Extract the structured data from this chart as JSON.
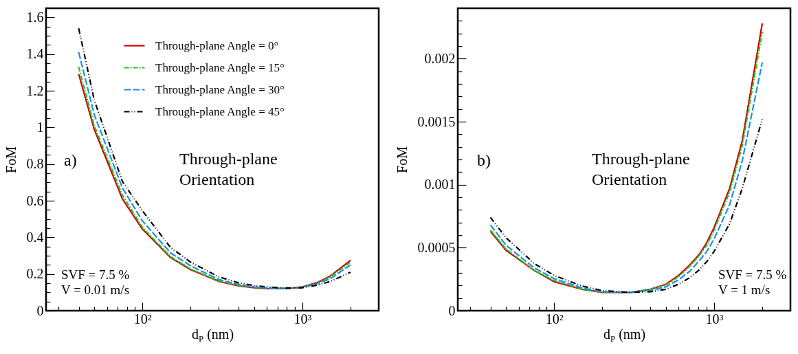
{
  "chart_data": [
    {
      "type": "line",
      "xlabel": "d$_{P}$ (nm)",
      "ylabel": "FoM",
      "log": "x",
      "grid": false,
      "legend": "top",
      "x": [
        40,
        50,
        75,
        100,
        150,
        200,
        300,
        400,
        500,
        600,
        700,
        800,
        900,
        1000,
        1250,
        1500,
        2000
      ],
      "xlim": [
        25,
        3000
      ],
      "xticks": [
        {
          "value": 30,
          "label": null
        },
        {
          "value": 40,
          "label": null
        },
        {
          "value": 50,
          "label": null
        },
        {
          "value": 60,
          "label": null
        },
        {
          "value": 70,
          "label": null
        },
        {
          "value": 80,
          "label": null
        },
        {
          "value": 90,
          "label": null
        },
        {
          "value": 100,
          "label": "10²"
        },
        {
          "value": 200,
          "label": null
        },
        {
          "value": 300,
          "label": null
        },
        {
          "value": 400,
          "label": null
        },
        {
          "value": 500,
          "label": null
        },
        {
          "value": 600,
          "label": null
        },
        {
          "value": 700,
          "label": null
        },
        {
          "value": 800,
          "label": null
        },
        {
          "value": 900,
          "label": null
        },
        {
          "value": 1000,
          "label": "10³"
        },
        {
          "value": 2000,
          "label": null
        }
      ],
      "ylim": [
        0,
        1.65
      ],
      "yticks": [
        0,
        {
          "value": 0.05,
          "label": null
        },
        {
          "value": 0.1,
          "label": null
        },
        {
          "value": 0.15,
          "label": null
        },
        0.2,
        {
          "value": 0.25,
          "label": null
        },
        {
          "value": 0.3,
          "label": null
        },
        {
          "value": 0.35,
          "label": null
        },
        0.4,
        {
          "value": 0.45,
          "label": null
        },
        {
          "value": 0.5,
          "label": null
        },
        {
          "value": 0.55,
          "label": null
        },
        0.6,
        {
          "value": 0.65,
          "label": null
        },
        {
          "value": 0.7,
          "label": null
        },
        {
          "value": 0.75,
          "label": null
        },
        0.8,
        {
          "value": 0.85,
          "label": null
        },
        {
          "value": 0.9,
          "label": null
        },
        {
          "value": 0.95,
          "label": null
        },
        1,
        {
          "value": 1.05,
          "label": null
        },
        {
          "value": 1.1,
          "label": null
        },
        {
          "value": 1.15,
          "label": null
        },
        1.2,
        {
          "value": 1.25,
          "label": null
        },
        {
          "value": 1.3,
          "label": null
        },
        {
          "value": 1.35,
          "label": null
        },
        1.4,
        {
          "value": 1.45,
          "label": null
        },
        {
          "value": 1.5,
          "label": null
        },
        {
          "value": 1.55,
          "label": null
        },
        1.6
      ],
      "annotations": [
        "a)",
        "Through-plane Orientation",
        "SVF = 7.5 %",
        "V = 0.01 m/s"
      ],
      "series": [
        {
          "name": "Through-plane Angle = 0°",
          "color": "#d40000",
          "line_style": "solid",
          "values": [
            1.29,
            0.99,
            0.61,
            0.445,
            0.29,
            0.224,
            0.16,
            0.135,
            0.125,
            0.12,
            0.12,
            0.12,
            0.125,
            0.13,
            0.155,
            0.19,
            0.275
          ]
        },
        {
          "name": "Through-plane Angle = 15°",
          "color": "#1ec81e",
          "line_style": "dashed",
          "values": [
            1.33,
            1.01,
            0.63,
            0.455,
            0.295,
            0.228,
            0.162,
            0.138,
            0.127,
            0.122,
            0.121,
            0.121,
            0.125,
            0.13,
            0.152,
            0.185,
            0.265
          ]
        },
        {
          "name": "Through-plane Angle = 30°",
          "color": "#1e8cf0",
          "line_style": "dashed",
          "values": [
            1.41,
            1.07,
            0.67,
            0.49,
            0.315,
            0.245,
            0.17,
            0.143,
            0.13,
            0.124,
            0.122,
            0.122,
            0.124,
            0.128,
            0.148,
            0.175,
            0.25
          ]
        },
        {
          "name": "Through-plane Angle = 45°",
          "color": "#000000",
          "line_style": "dashed",
          "values": [
            1.54,
            1.15,
            0.705,
            0.545,
            0.345,
            0.265,
            0.185,
            0.152,
            0.137,
            0.13,
            0.126,
            0.124,
            0.124,
            0.125,
            0.14,
            0.16,
            0.21
          ]
        }
      ]
    },
    {
      "type": "line",
      "xlabel": "d$_{P}$ (nm)",
      "ylabel": "FoM",
      "log": "x",
      "grid": false,
      "legend": "top",
      "x": [
        40,
        50,
        75,
        100,
        150,
        200,
        300,
        400,
        500,
        600,
        700,
        800,
        900,
        1000,
        1250,
        1500,
        2000
      ],
      "xlim": [
        25,
        3000
      ],
      "xticks": [
        {
          "value": 30,
          "label": null
        },
        {
          "value": 40,
          "label": null
        },
        {
          "value": 50,
          "label": null
        },
        {
          "value": 60,
          "label": null
        },
        {
          "value": 70,
          "label": null
        },
        {
          "value": 80,
          "label": null
        },
        {
          "value": 90,
          "label": null
        },
        {
          "value": 100,
          "label": "10²"
        },
        {
          "value": 200,
          "label": null
        },
        {
          "value": 300,
          "label": null
        },
        {
          "value": 400,
          "label": null
        },
        {
          "value": 500,
          "label": null
        },
        {
          "value": 600,
          "label": null
        },
        {
          "value": 700,
          "label": null
        },
        {
          "value": 800,
          "label": null
        },
        {
          "value": 900,
          "label": null
        },
        {
          "value": 1000,
          "label": "10³"
        },
        {
          "value": 2000,
          "label": null
        }
      ],
      "ylim": [
        0,
        0.0024
      ],
      "yticks": [
        0,
        {
          "value": 0.0001,
          "label": null
        },
        {
          "value": 0.0002,
          "label": null
        },
        {
          "value": 0.0003,
          "label": null
        },
        {
          "value": 0.0004,
          "label": null
        },
        0.0005,
        {
          "value": 0.0006,
          "label": null
        },
        {
          "value": 0.0007,
          "label": null
        },
        {
          "value": 0.0008,
          "label": null
        },
        {
          "value": 0.0009,
          "label": null
        },
        0.001,
        {
          "value": 0.0011,
          "label": null
        },
        {
          "value": 0.0012,
          "label": null
        },
        {
          "value": 0.0013,
          "label": null
        },
        {
          "value": 0.0014,
          "label": null
        },
        0.0015,
        {
          "value": 0.0016,
          "label": null
        },
        {
          "value": 0.0017,
          "label": null
        },
        {
          "value": 0.0018,
          "label": null
        },
        {
          "value": 0.0019,
          "label": null
        },
        0.002,
        {
          "value": 0.0021,
          "label": null
        },
        {
          "value": 0.0022,
          "label": null
        },
        {
          "value": 0.0023,
          "label": null
        }
      ],
      "annotations": [
        "b)",
        "Through-plane Orientation",
        "SVF = 7.5 %",
        "V = 1 m/s"
      ],
      "series": [
        {
          "name": "Through-plane Angle = 0°",
          "color": "#d40000",
          "line_style": "solid",
          "values": [
            0.00063,
            0.00048,
            0.00032,
            0.00023,
            0.00017,
            0.000145,
            0.000145,
            0.00017,
            0.00021,
            0.00028,
            0.00036,
            0.00044,
            0.00054,
            0.00066,
            0.00097,
            0.00135,
            0.00228
          ]
        },
        {
          "name": "Through-plane Angle = 15°",
          "color": "#1ec81e",
          "line_style": "dashed",
          "values": [
            0.00064,
            0.00049,
            0.00032,
            0.00024,
            0.00017,
            0.000146,
            0.000145,
            0.00017,
            0.000205,
            0.00027,
            0.00035,
            0.00043,
            0.00052,
            0.00064,
            0.00094,
            0.00131,
            0.00221
          ]
        },
        {
          "name": "Through-plane Angle = 30°",
          "color": "#1e8cf0",
          "line_style": "dashed",
          "values": [
            0.00068,
            0.00052,
            0.00034,
            0.000255,
            0.00018,
            0.00015,
            0.000145,
            0.00016,
            0.00019,
            0.000245,
            0.00031,
            0.00039,
            0.00047,
            0.00057,
            0.00084,
            0.00119,
            0.00197
          ]
        },
        {
          "name": "Through-plane Angle = 45°",
          "color": "#000000",
          "line_style": "dashed",
          "values": [
            0.00074,
            0.00058,
            0.000375,
            0.00028,
            0.000195,
            0.00016,
            0.000145,
            0.00015,
            0.00017,
            0.00021,
            0.00026,
            0.00032,
            0.00039,
            0.00047,
            0.00069,
            0.00097,
            0.00152
          ]
        }
      ]
    }
  ]
}
